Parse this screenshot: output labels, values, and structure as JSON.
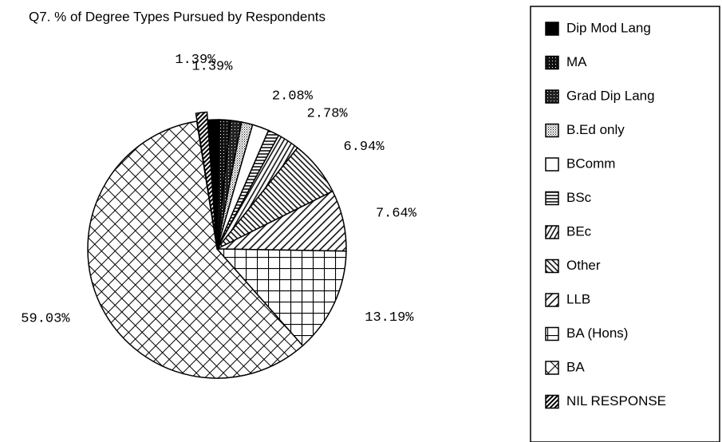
{
  "chart_data": {
    "type": "pie",
    "title": "Q7. % of Degree Types Pursued by Respondents",
    "categories": [
      "Dip Mod Lang",
      "MA",
      "Grad Dip Lang",
      "B.Ed only",
      "BComm",
      "BSc",
      "BEc",
      "Other",
      "LLB",
      "BA (Hons)",
      "BA",
      "NIL RESPONSE"
    ],
    "values": [
      1.39,
      1.39,
      1.39,
      1.39,
      2.08,
      1.39,
      2.78,
      6.94,
      7.64,
      13.19,
      59.03,
      1.39
    ],
    "value_labels": [
      "1.39%",
      null,
      null,
      null,
      "2.08%",
      null,
      "2.78%",
      "6.94%",
      "7.64%",
      "13.19%",
      "59.03%",
      "1.39%"
    ],
    "exploded": [
      "NIL RESPONSE"
    ]
  }
}
